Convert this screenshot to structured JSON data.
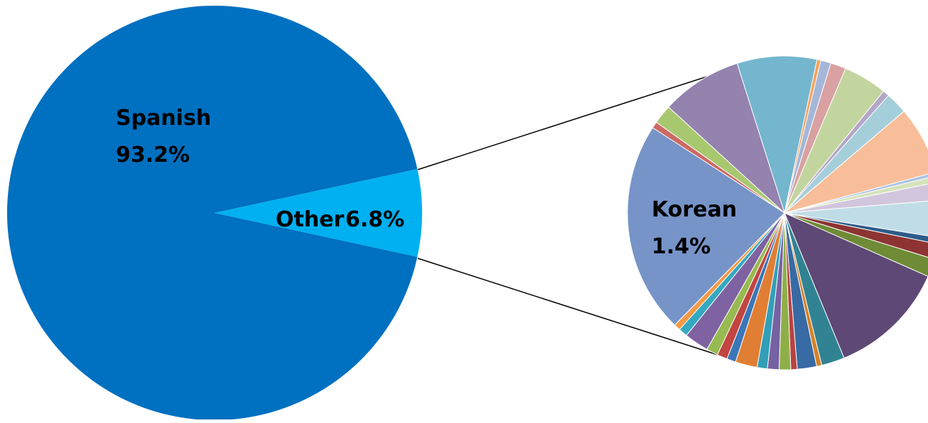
{
  "chart_data": [
    {
      "type": "pie",
      "slices": [
        {
          "label": "Spanish",
          "value": 93.2,
          "value_label": "93.2%",
          "color": "#0070C0"
        },
        {
          "label": "Other",
          "value": 6.8,
          "value_label": "6.8%",
          "color": "#00B0F0"
        }
      ],
      "exploded_slice": "Other"
    },
    {
      "type": "pie",
      "labeled_slice": {
        "label": "Korean",
        "value_label": "1.4%"
      },
      "slices": [
        {
          "value": 6.2,
          "color": "#74B6CE"
        },
        {
          "value": 0.3,
          "color": "#F6A15B"
        },
        {
          "value": 0.8,
          "color": "#A4B7D8"
        },
        {
          "value": 1.2,
          "color": "#D9A1A1"
        },
        {
          "value": 3.4,
          "color": "#C3D59F"
        },
        {
          "value": 0.5,
          "color": "#B3A6C8"
        },
        {
          "value": 1.7,
          "color": "#A5CEDB"
        },
        {
          "value": 5.3,
          "color": "#F8BE99"
        },
        {
          "value": 0.3,
          "color": "#ADC4E2"
        },
        {
          "value": 0.5,
          "color": "#D5E3BB"
        },
        {
          "value": 1.4,
          "color": "#D1C6DC"
        },
        {
          "value": 2.9,
          "color": "#C0DDE7"
        },
        {
          "value": 0.5,
          "color": "#2E5B8A"
        },
        {
          "value": 1.2,
          "color": "#8D3432"
        },
        {
          "value": 1.4,
          "color": "#6F8B36"
        },
        {
          "value": 9.2,
          "color": "#5E4875"
        },
        {
          "value": 1.8,
          "color": "#318393"
        },
        {
          "value": 0.4,
          "color": "#D58126"
        },
        {
          "value": 1.5,
          "color": "#386BA3"
        },
        {
          "value": 0.5,
          "color": "#B84242"
        },
        {
          "value": 0.9,
          "color": "#8EAF48"
        },
        {
          "value": 0.9,
          "color": "#7661A2"
        },
        {
          "value": 0.8,
          "color": "#319FB8"
        },
        {
          "value": 1.7,
          "color": "#E07E34"
        },
        {
          "value": 0.7,
          "color": "#3A76B8"
        },
        {
          "value": 0.8,
          "color": "#C14540"
        },
        {
          "value": 0.9,
          "color": "#98BA52"
        },
        {
          "value": 1.9,
          "color": "#7F62A1"
        },
        {
          "value": 0.7,
          "color": "#34A9C1"
        },
        {
          "value": 0.5,
          "color": "#F39A45"
        },
        {
          "value": 16.5,
          "color": "#7694C8"
        },
        {
          "value": 0.5,
          "color": "#CC6963"
        },
        {
          "value": 1.5,
          "color": "#A8C870"
        },
        {
          "value": 6.3,
          "color": "#9482AF"
        }
      ]
    }
  ]
}
